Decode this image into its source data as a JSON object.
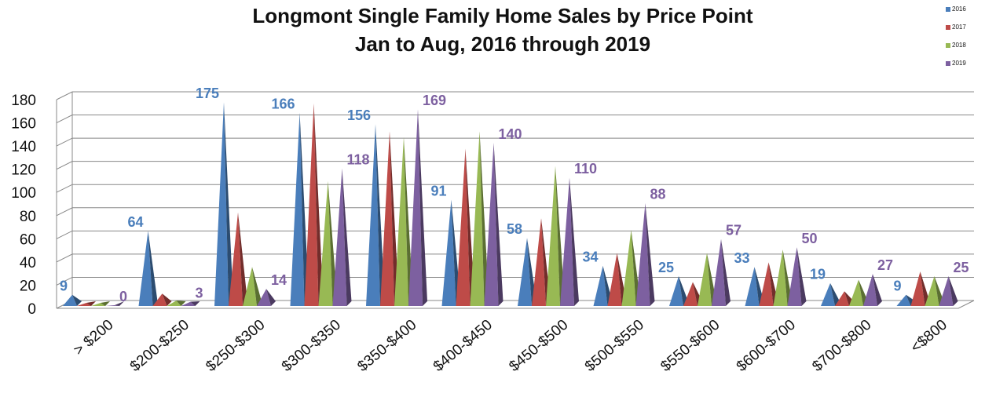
{
  "chart_data": {
    "type": "bar3d",
    "title": [
      "Longmont Single Family Home Sales by Price Point",
      "Jan to Aug, 2016 through 2019"
    ],
    "categories": [
      "> $200",
      "$200-$250",
      "$250-$300",
      "$300-$350",
      "$350-$400",
      "$400-$450",
      "$450-$500",
      "$500-$550",
      "$550-$600",
      "$600-$700",
      "$700-$800",
      "<$800"
    ],
    "series": [
      {
        "name": "2016",
        "color": "#4a7ebb",
        "values": [
          9,
          64,
          175,
          166,
          156,
          91,
          58,
          34,
          25,
          33,
          19,
          9
        ],
        "value_labels": [
          "9",
          "64",
          "175",
          "166",
          "156",
          "91",
          "58",
          "34",
          "25",
          "33",
          "19",
          "9"
        ]
      },
      {
        "name": "2017",
        "color": "#be4b48",
        "values": [
          2,
          10,
          80,
          174,
          150,
          135,
          75,
          45,
          20,
          37,
          12,
          29
        ]
      },
      {
        "name": "2018",
        "color": "#98b954",
        "values": [
          2,
          4,
          33,
          107,
          145,
          150,
          120,
          65,
          45,
          48,
          22,
          25
        ]
      },
      {
        "name": "2019",
        "color": "#7d60a0",
        "values": [
          0,
          3,
          14,
          118,
          169,
          140,
          110,
          88,
          57,
          50,
          27,
          25
        ],
        "value_labels": [
          "0",
          "3",
          "14",
          "118",
          "169",
          "140",
          "110",
          "88",
          "57",
          "50",
          "27",
          "25"
        ]
      }
    ],
    "ylim": [
      0,
      180
    ],
    "yticks": [
      0,
      20,
      40,
      60,
      80,
      100,
      120,
      140,
      160,
      180
    ],
    "grid": true,
    "legend": "top-right"
  }
}
